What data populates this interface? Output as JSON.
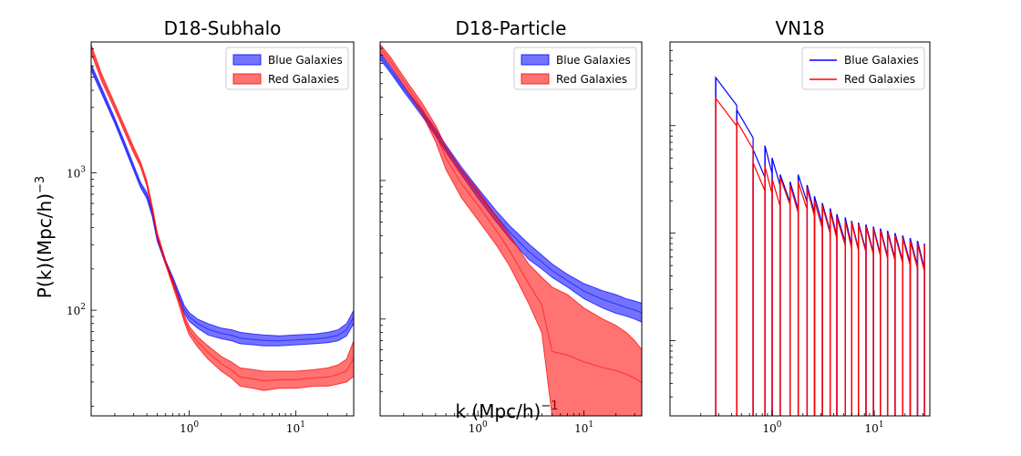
{
  "chart_data": [
    {
      "type": "area",
      "title": "D18-Subhalo",
      "xlabel": "k (Mpc/h)$^{-1}$",
      "ylabel": "P(k)(Mpc/h)$^{-3}$",
      "xscale": "log",
      "yscale": "log",
      "xlim": [
        0.12,
        35
      ],
      "ylim": [
        17,
        9000
      ],
      "xticks": [
        {
          "v": 1,
          "base": "10",
          "exp": "0"
        },
        {
          "v": 10,
          "base": "10",
          "exp": "1"
        }
      ],
      "yticks": [
        {
          "v": 100,
          "base": "10",
          "exp": "2"
        },
        {
          "v": 1000,
          "base": "10",
          "exp": "3"
        }
      ],
      "legend": {
        "placement": "top-right",
        "style": "patch"
      },
      "series": [
        {
          "name": "Blue Galaxies",
          "color": "#0000ff",
          "x": [
            0.12,
            0.15,
            0.2,
            0.25,
            0.3,
            0.35,
            0.4,
            0.45,
            0.5,
            0.6,
            0.7,
            0.8,
            0.9,
            1.0,
            1.2,
            1.5,
            2,
            2.5,
            3,
            4,
            5,
            7,
            10,
            15,
            20,
            25,
            30,
            35
          ],
          "lower": [
            5600,
            3800,
            2300,
            1500,
            1050,
            780,
            650,
            480,
            320,
            215,
            160,
            120,
            95,
            83,
            74,
            66,
            62,
            60,
            57,
            56,
            55,
            55,
            56,
            57,
            58,
            60,
            65,
            80
          ],
          "upper": [
            6200,
            4200,
            2500,
            1650,
            1150,
            850,
            720,
            530,
            350,
            230,
            175,
            135,
            108,
            96,
            86,
            80,
            74,
            72,
            69,
            67,
            66,
            65,
            66,
            67,
            69,
            72,
            80,
            100
          ]
        },
        {
          "name": "Red Galaxies",
          "color": "#ff0000",
          "x": [
            0.12,
            0.15,
            0.2,
            0.25,
            0.3,
            0.35,
            0.4,
            0.45,
            0.5,
            0.6,
            0.7,
            0.8,
            0.9,
            1.0,
            1.2,
            1.5,
            2,
            2.5,
            3,
            4,
            5,
            7,
            10,
            15,
            20,
            25,
            30,
            35
          ],
          "lower": [
            7500,
            4700,
            2900,
            1950,
            1400,
            1100,
            800,
            520,
            340,
            215,
            150,
            110,
            82,
            66,
            54,
            44,
            36,
            32,
            28,
            27,
            26,
            27,
            27,
            28,
            28,
            29,
            30,
            33
          ],
          "upper": [
            8600,
            5300,
            3200,
            2150,
            1550,
            1200,
            880,
            570,
            370,
            230,
            165,
            122,
            92,
            76,
            64,
            55,
            46,
            42,
            38,
            37,
            36,
            36,
            36,
            37,
            38,
            40,
            44,
            60
          ]
        }
      ]
    },
    {
      "type": "area",
      "title": "D18-Particle",
      "xlabel": "k (Mpc/h)$^{-1}$",
      "ylabel": "",
      "xscale": "log",
      "yscale": "log",
      "xlim": [
        0.12,
        35
      ],
      "ylim": [
        2,
        1000
      ],
      "xticks": [
        {
          "v": 1,
          "base": "10",
          "exp": "0"
        },
        {
          "v": 10,
          "base": "10",
          "exp": "1"
        }
      ],
      "yticks": [],
      "legend": {
        "placement": "top-right",
        "style": "patch"
      },
      "series": [
        {
          "name": "Blue Galaxies",
          "color": "#0000ff",
          "x": [
            0.12,
            0.15,
            0.2,
            0.3,
            0.4,
            0.5,
            0.7,
            1.0,
            1.5,
            2,
            3,
            4,
            5,
            7,
            10,
            15,
            20,
            25,
            30,
            35
          ],
          "lower": [
            750,
            600,
            440,
            290,
            210,
            160,
            110,
            75,
            50,
            38,
            27,
            23,
            20,
            17,
            14,
            12,
            11,
            10.5,
            10,
            9.5
          ],
          "upper": [
            830,
            660,
            480,
            320,
            235,
            180,
            125,
            88,
            60,
            47,
            35,
            29,
            25,
            21,
            18,
            16,
            15,
            14,
            13.5,
            13
          ]
        },
        {
          "name": "Red Galaxies",
          "color": "#ff0000",
          "x": [
            0.12,
            0.15,
            0.2,
            0.3,
            0.4,
            0.5,
            0.7,
            1.0,
            1.5,
            2,
            3,
            4,
            5,
            7,
            10,
            15,
            20,
            25,
            30,
            35
          ],
          "lower": [
            850,
            680,
            490,
            300,
            190,
            120,
            75,
            52,
            34,
            24,
            13,
            8,
            2,
            2,
            2,
            2,
            2,
            2,
            2,
            2
          ],
          "upper": [
            960,
            780,
            560,
            360,
            250,
            175,
            120,
            85,
            55,
            40,
            25,
            20,
            17,
            15,
            12,
            10,
            9,
            8,
            7,
            6
          ]
        }
      ]
    },
    {
      "type": "line",
      "title": "VN18",
      "xlabel": "",
      "ylabel": "",
      "xscale": "log",
      "yscale": "log",
      "xlim": [
        0.1,
        35
      ],
      "ylim": [
        20,
        60000
      ],
      "xticks": [
        {
          "v": 1,
          "base": "10",
          "exp": "0"
        },
        {
          "v": 10,
          "base": "10",
          "exp": "1"
        }
      ],
      "yticks": [],
      "legend": {
        "placement": "top-right",
        "style": "line"
      },
      "series": [
        {
          "name": "Blue Galaxies",
          "color": "#0000ff",
          "spikes": [
            [
              0.28,
              28000
            ],
            [
              0.45,
              14000
            ],
            [
              0.65,
              6000
            ],
            [
              0.85,
              6500
            ],
            [
              1.0,
              5000
            ],
            [
              1.2,
              3500
            ],
            [
              1.5,
              3000
            ],
            [
              1.8,
              3500
            ],
            [
              2.2,
              2800
            ],
            [
              2.6,
              2200
            ],
            [
              3.1,
              1900
            ],
            [
              3.7,
              1700
            ],
            [
              4.3,
              1500
            ],
            [
              5.2,
              1400
            ],
            [
              6.0,
              1300
            ],
            [
              7.0,
              1250
            ],
            [
              8.3,
              1200
            ],
            [
              9.8,
              1150
            ],
            [
              11.5,
              1100
            ],
            [
              13.5,
              1050
            ],
            [
              16.0,
              1000
            ],
            [
              19.0,
              950
            ],
            [
              22.5,
              900
            ],
            [
              26.5,
              850
            ],
            [
              31.0,
              800
            ]
          ]
        },
        {
          "name": "Red Galaxies",
          "color": "#ff0000",
          "spikes": [
            [
              0.28,
              18000
            ],
            [
              0.45,
              11000
            ],
            [
              0.65,
              4500
            ],
            [
              0.85,
              4200
            ],
            [
              1.0,
              3200
            ],
            [
              1.2,
              3300
            ],
            [
              1.5,
              2800
            ],
            [
              1.8,
              3000
            ],
            [
              2.2,
              2600
            ],
            [
              2.6,
              2000
            ],
            [
              3.1,
              1800
            ],
            [
              3.7,
              1600
            ],
            [
              4.3,
              1400
            ],
            [
              5.2,
              1300
            ],
            [
              6.0,
              1250
            ],
            [
              7.0,
              1200
            ],
            [
              8.3,
              1150
            ],
            [
              9.8,
              1100
            ],
            [
              11.5,
              1050
            ],
            [
              13.5,
              1000
            ],
            [
              16.0,
              950
            ],
            [
              19.0,
              900
            ],
            [
              22.5,
              850
            ],
            [
              26.5,
              800
            ],
            [
              31.0,
              780
            ]
          ]
        }
      ]
    }
  ]
}
